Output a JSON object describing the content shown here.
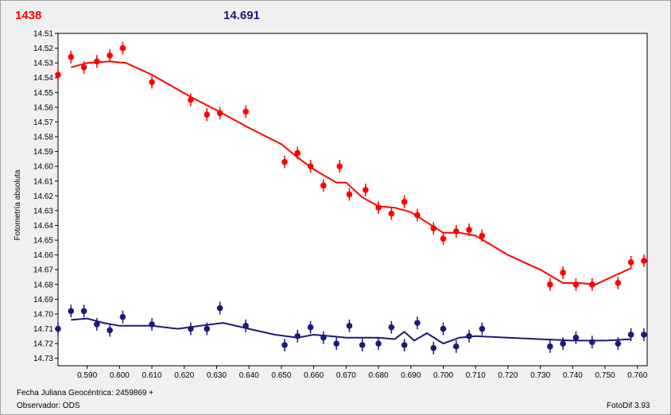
{
  "header": {
    "left_value": "1438",
    "right_value": "14.691",
    "left_color": "#ff0000",
    "right_color": "#1a1a7a"
  },
  "footer": {
    "date_label": "Fecha Juliana Geocéntrica: 2459869 +",
    "observer_label": "Observador: ODS",
    "version_label": "FotoDif 3.93"
  },
  "chart_data": {
    "type": "scatter",
    "ylabel": "Fotometría absoluta",
    "xlabel": "",
    "xlim": [
      0.581,
      0.763
    ],
    "ylim": [
      14.51,
      14.735
    ],
    "y_inverted": true,
    "grid": true,
    "x_ticks": [
      "0.590",
      "0.600",
      "0.610",
      "0.620",
      "0.630",
      "0.640",
      "0.650",
      "0.660",
      "0.670",
      "0.680",
      "0.690",
      "0.700",
      "0.710",
      "0.720",
      "0.730",
      "0.740",
      "0.750",
      "0.760"
    ],
    "y_ticks": [
      "14.51",
      "14.52",
      "14.53",
      "14.54",
      "14.55",
      "14.56",
      "14.57",
      "14.58",
      "14.59",
      "14.60",
      "14.61",
      "14.62",
      "14.63",
      "14.64",
      "14.65",
      "14.66",
      "14.67",
      "14.68",
      "14.69",
      "14.70",
      "14.71",
      "14.72",
      "14.73"
    ],
    "series": [
      {
        "color": "#ff0000",
        "points": [
          [
            0.581,
            14.538
          ],
          [
            0.585,
            14.526
          ],
          [
            0.589,
            14.533
          ],
          [
            0.593,
            14.529
          ],
          [
            0.597,
            14.525
          ],
          [
            0.601,
            14.52
          ],
          [
            0.61,
            14.543
          ],
          [
            0.622,
            14.555
          ],
          [
            0.627,
            14.565
          ],
          [
            0.631,
            14.564
          ],
          [
            0.639,
            14.563
          ],
          [
            0.651,
            14.597
          ],
          [
            0.655,
            14.591
          ],
          [
            0.659,
            14.6
          ],
          [
            0.663,
            14.613
          ],
          [
            0.668,
            14.6
          ],
          [
            0.671,
            14.619
          ],
          [
            0.676,
            14.616
          ],
          [
            0.68,
            14.628
          ],
          [
            0.684,
            14.632
          ],
          [
            0.688,
            14.624
          ],
          [
            0.692,
            14.633
          ],
          [
            0.697,
            14.642
          ],
          [
            0.7,
            14.649
          ],
          [
            0.704,
            14.644
          ],
          [
            0.708,
            14.643
          ],
          [
            0.712,
            14.647
          ],
          [
            0.733,
            14.68
          ],
          [
            0.737,
            14.672
          ],
          [
            0.741,
            14.68
          ],
          [
            0.746,
            14.68
          ],
          [
            0.754,
            14.679
          ],
          [
            0.758,
            14.665
          ],
          [
            0.762,
            14.664
          ]
        ],
        "fit": [
          [
            0.585,
            14.533
          ],
          [
            0.59,
            14.53
          ],
          [
            0.597,
            14.529
          ],
          [
            0.602,
            14.53
          ],
          [
            0.61,
            14.538
          ],
          [
            0.622,
            14.553
          ],
          [
            0.63,
            14.562
          ],
          [
            0.64,
            14.574
          ],
          [
            0.65,
            14.585
          ],
          [
            0.655,
            14.594
          ],
          [
            0.66,
            14.602
          ],
          [
            0.663,
            14.606
          ],
          [
            0.667,
            14.611
          ],
          [
            0.67,
            14.611
          ],
          [
            0.675,
            14.621
          ],
          [
            0.68,
            14.627
          ],
          [
            0.685,
            14.628
          ],
          [
            0.69,
            14.631
          ],
          [
            0.695,
            14.638
          ],
          [
            0.7,
            14.645
          ],
          [
            0.705,
            14.645
          ],
          [
            0.71,
            14.647
          ],
          [
            0.72,
            14.66
          ],
          [
            0.73,
            14.67
          ],
          [
            0.737,
            14.679
          ],
          [
            0.742,
            14.679
          ],
          [
            0.747,
            14.68
          ],
          [
            0.752,
            14.675
          ],
          [
            0.758,
            14.669
          ]
        ]
      },
      {
        "color": "#1a1a7a",
        "points": [
          [
            0.581,
            14.71
          ],
          [
            0.585,
            14.698
          ],
          [
            0.589,
            14.698
          ],
          [
            0.593,
            14.707
          ],
          [
            0.597,
            14.711
          ],
          [
            0.601,
            14.702
          ],
          [
            0.61,
            14.707
          ],
          [
            0.622,
            14.71
          ],
          [
            0.627,
            14.71
          ],
          [
            0.631,
            14.696
          ],
          [
            0.639,
            14.708
          ],
          [
            0.651,
            14.721
          ],
          [
            0.655,
            14.715
          ],
          [
            0.659,
            14.709
          ],
          [
            0.663,
            14.716
          ],
          [
            0.667,
            14.72
          ],
          [
            0.671,
            14.708
          ],
          [
            0.675,
            14.721
          ],
          [
            0.68,
            14.72
          ],
          [
            0.684,
            14.709
          ],
          [
            0.688,
            14.721
          ],
          [
            0.692,
            14.706
          ],
          [
            0.697,
            14.723
          ],
          [
            0.7,
            14.71
          ],
          [
            0.704,
            14.722
          ],
          [
            0.708,
            14.715
          ],
          [
            0.712,
            14.71
          ],
          [
            0.733,
            14.722
          ],
          [
            0.737,
            14.72
          ],
          [
            0.741,
            14.716
          ],
          [
            0.746,
            14.719
          ],
          [
            0.754,
            14.72
          ],
          [
            0.758,
            14.714
          ],
          [
            0.762,
            14.714
          ]
        ],
        "fit": [
          [
            0.585,
            14.704
          ],
          [
            0.59,
            14.703
          ],
          [
            0.595,
            14.706
          ],
          [
            0.6,
            14.708
          ],
          [
            0.605,
            14.708
          ],
          [
            0.61,
            14.708
          ],
          [
            0.618,
            14.71
          ],
          [
            0.625,
            14.708
          ],
          [
            0.632,
            14.706
          ],
          [
            0.64,
            14.71
          ],
          [
            0.648,
            14.714
          ],
          [
            0.655,
            14.716
          ],
          [
            0.66,
            14.714
          ],
          [
            0.665,
            14.715
          ],
          [
            0.67,
            14.716
          ],
          [
            0.675,
            14.716
          ],
          [
            0.68,
            14.716
          ],
          [
            0.685,
            14.717
          ],
          [
            0.688,
            14.712
          ],
          [
            0.691,
            14.718
          ],
          [
            0.695,
            14.713
          ],
          [
            0.7,
            14.72
          ],
          [
            0.705,
            14.716
          ],
          [
            0.71,
            14.715
          ],
          [
            0.72,
            14.716
          ],
          [
            0.73,
            14.717
          ],
          [
            0.74,
            14.718
          ],
          [
            0.75,
            14.718
          ],
          [
            0.758,
            14.717
          ]
        ]
      }
    ]
  }
}
